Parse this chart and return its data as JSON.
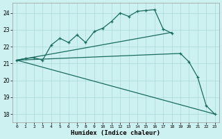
{
  "xlabel": "Humidex (Indice chaleur)",
  "xlim": [
    -0.5,
    23.5
  ],
  "ylim": [
    17.5,
    24.6
  ],
  "yticks": [
    18,
    19,
    20,
    21,
    22,
    23,
    24
  ],
  "xticks": [
    0,
    1,
    2,
    3,
    4,
    5,
    6,
    7,
    8,
    9,
    10,
    11,
    12,
    13,
    14,
    15,
    16,
    17,
    18,
    19,
    20,
    21,
    22,
    23
  ],
  "bg_color": "#cdf0f0",
  "grid_color": "#aadada",
  "line_color": "#1a6b60",
  "line1_x": [
    0,
    1,
    2,
    3,
    4,
    5,
    6,
    7,
    8,
    9,
    10,
    11,
    12,
    13,
    14,
    15,
    16,
    17,
    18
  ],
  "line1_y": [
    21.2,
    21.3,
    21.35,
    21.2,
    22.1,
    22.5,
    22.25,
    22.7,
    22.25,
    22.9,
    23.1,
    23.5,
    24.0,
    23.8,
    24.1,
    24.15,
    24.2,
    23.05,
    22.8
  ],
  "line2_x": [
    0,
    18
  ],
  "line2_y": [
    21.2,
    22.85
  ],
  "line3_x": [
    0,
    19
  ],
  "line3_y": [
    21.2,
    21.6
  ],
  "line4_drop_x": [
    19,
    20,
    21,
    22,
    23
  ],
  "line4_drop_y": [
    21.6,
    21.1,
    20.2,
    18.5,
    18.0
  ],
  "line5_x": [
    0,
    23
  ],
  "line5_y": [
    21.2,
    18.0
  ]
}
